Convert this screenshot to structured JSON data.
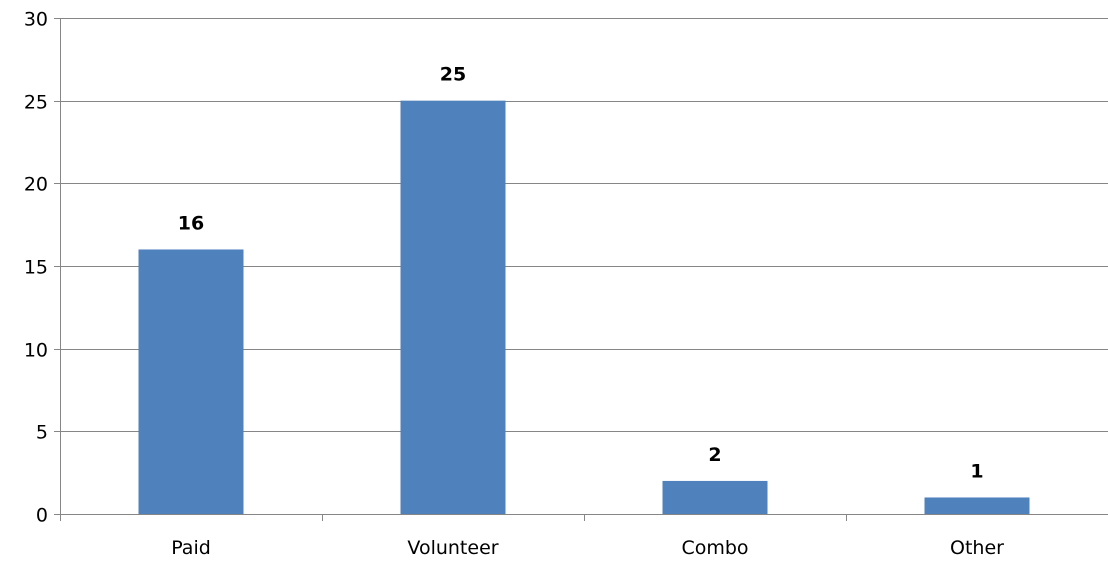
{
  "chart_data": {
    "type": "bar",
    "categories": [
      "Paid",
      "Volunteer",
      "Combo",
      "Other"
    ],
    "values": [
      16,
      25,
      2,
      1
    ],
    "data_labels": [
      "16",
      "25",
      "2",
      "1"
    ],
    "title": "",
    "xlabel": "",
    "ylabel": "",
    "ylim": [
      0,
      30
    ],
    "yticks": [
      0,
      5,
      10,
      15,
      20,
      25,
      30
    ],
    "ytick_labels": [
      "0",
      "5",
      "10",
      "15",
      "20",
      "25",
      "30"
    ],
    "grid": true,
    "legend": "none",
    "bar_color": "#4F81BD",
    "grid_color": "#868686"
  }
}
